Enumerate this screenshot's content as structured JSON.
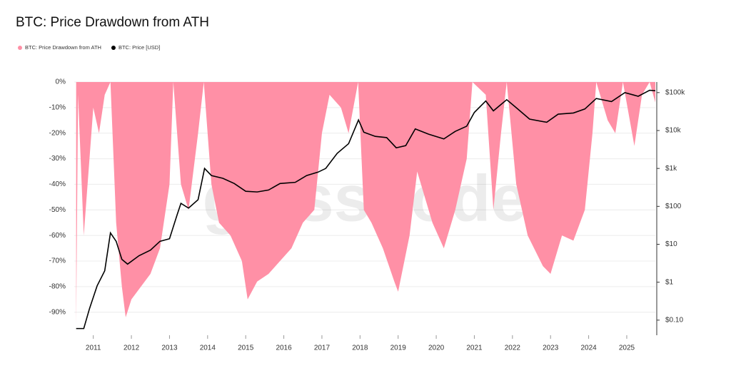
{
  "chart_data": {
    "type": "area-line",
    "title": "BTC: Price Drawdown from ATH",
    "watermark": "glassnode",
    "xlim": [
      2010.5,
      2025.75
    ],
    "xticks": [
      2011,
      2012,
      2013,
      2014,
      2015,
      2016,
      2017,
      2018,
      2019,
      2020,
      2021,
      2022,
      2023,
      2024,
      2025
    ],
    "ylim": [
      -99,
      0
    ],
    "yticks": [
      {
        "value": 0,
        "label": "0%"
      },
      {
        "value": -10,
        "label": "-10%"
      },
      {
        "value": -20,
        "label": "-20%"
      },
      {
        "value": -30,
        "label": "-30%"
      },
      {
        "value": -40,
        "label": "-40%"
      },
      {
        "value": -50,
        "label": "-50%"
      },
      {
        "value": -60,
        "label": "-60%"
      },
      {
        "value": -70,
        "label": "-70%"
      },
      {
        "value": -80,
        "label": "-80%"
      },
      {
        "value": -90,
        "label": "-90%"
      }
    ],
    "y2lim": [
      0.04,
      190000
    ],
    "y2scale": "log",
    "y2ticks": [
      {
        "value": 100000,
        "label": "$100k"
      },
      {
        "value": 10000,
        "label": "$10k"
      },
      {
        "value": 1000,
        "label": "$1k"
      },
      {
        "value": 100,
        "label": "$100"
      },
      {
        "value": 10,
        "label": "$10"
      },
      {
        "value": 1,
        "label": "$1"
      },
      {
        "value": 0.1,
        "label": "$0.10"
      }
    ],
    "grid": true,
    "legend": "top-left",
    "series": [
      {
        "name": "BTC: Price Drawdown from ATH",
        "color": "#ff90a6",
        "kind": "area",
        "x": [
          2010.55,
          2010.6,
          2010.75,
          2010.9,
          2011.0,
          2011.15,
          2011.3,
          2011.45,
          2011.6,
          2011.75,
          2011.85,
          2012.0,
          2012.25,
          2012.5,
          2012.75,
          2013.0,
          2013.1,
          2013.3,
          2013.5,
          2013.75,
          2013.9,
          2014.1,
          2014.3,
          2014.6,
          2014.9,
          2015.05,
          2015.3,
          2015.6,
          2015.9,
          2016.2,
          2016.5,
          2016.8,
          2017.0,
          2017.2,
          2017.5,
          2017.7,
          2017.95,
          2018.1,
          2018.3,
          2018.6,
          2018.9,
          2019.0,
          2019.3,
          2019.5,
          2019.7,
          2019.9,
          2020.2,
          2020.5,
          2020.8,
          2020.95,
          2021.3,
          2021.5,
          2021.7,
          2021.85,
          2022.1,
          2022.4,
          2022.8,
          2023.0,
          2023.3,
          2023.6,
          2023.9,
          2024.1,
          2024.2,
          2024.5,
          2024.7,
          2024.9,
          2025.2,
          2025.4,
          2025.6,
          2025.75
        ],
        "values": [
          -95,
          -5,
          -60,
          -30,
          -10,
          -20,
          -5,
          0,
          -55,
          -80,
          -92,
          -85,
          -80,
          -75,
          -65,
          -40,
          0,
          -40,
          -50,
          -20,
          0,
          -40,
          -55,
          -60,
          -70,
          -85,
          -78,
          -75,
          -70,
          -65,
          -55,
          -50,
          -20,
          -5,
          -10,
          -20,
          0,
          -50,
          -55,
          -65,
          -78,
          -82,
          -60,
          -35,
          -45,
          -55,
          -65,
          -50,
          -30,
          0,
          -5,
          -50,
          -20,
          0,
          -40,
          -60,
          -72,
          -75,
          -60,
          -62,
          -50,
          -20,
          0,
          -15,
          -20,
          0,
          -25,
          -5,
          0,
          -8
        ]
      },
      {
        "name": "BTC: Price [USD]",
        "color": "#000000",
        "kind": "line",
        "axis": "y2",
        "x": [
          2010.55,
          2010.75,
          2010.9,
          2011.1,
          2011.3,
          2011.45,
          2011.6,
          2011.75,
          2011.9,
          2012.2,
          2012.5,
          2012.75,
          2013.0,
          2013.2,
          2013.3,
          2013.5,
          2013.75,
          2013.92,
          2014.1,
          2014.4,
          2014.7,
          2015.0,
          2015.3,
          2015.6,
          2015.9,
          2016.3,
          2016.6,
          2016.9,
          2017.1,
          2017.4,
          2017.7,
          2017.96,
          2018.1,
          2018.4,
          2018.7,
          2018.95,
          2019.2,
          2019.45,
          2019.8,
          2020.2,
          2020.5,
          2020.8,
          2021.0,
          2021.3,
          2021.5,
          2021.85,
          2022.1,
          2022.45,
          2022.9,
          2023.2,
          2023.6,
          2023.9,
          2024.2,
          2024.6,
          2024.95,
          2025.3,
          2025.6,
          2025.75
        ],
        "values": [
          0.06,
          0.06,
          0.2,
          0.8,
          2,
          20,
          12,
          4,
          3,
          5,
          7,
          12,
          14,
          60,
          120,
          90,
          150,
          1000,
          650,
          550,
          400,
          250,
          240,
          270,
          400,
          430,
          650,
          800,
          1000,
          2500,
          4500,
          19000,
          9000,
          7000,
          6500,
          3500,
          4000,
          11000,
          8000,
          6000,
          9500,
          13000,
          30000,
          60000,
          33000,
          65000,
          40000,
          20000,
          16500,
          27000,
          29000,
          37000,
          70000,
          58000,
          100000,
          80000,
          115000,
          112000
        ]
      }
    ]
  }
}
